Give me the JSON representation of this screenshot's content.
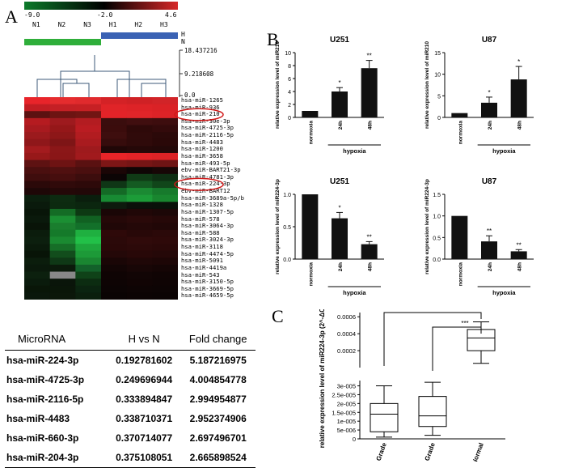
{
  "panel_a": {
    "letter": "A",
    "color_scale": {
      "min_label": "-9.0",
      "mid_label": "-2.0",
      "max_label": "4.6",
      "colors": [
        "#0c7a2a",
        "#000000",
        "#d62828"
      ]
    },
    "columns": [
      "N1",
      "N2",
      "N3",
      "H1",
      "H2",
      "H3"
    ],
    "group_legend": [
      {
        "label": "H",
        "color": "#3a62b4"
      },
      {
        "label": "N",
        "color": "#2fae3a"
      }
    ],
    "dendrogram_ticks": [
      "18.437216",
      "9.218608",
      "0.0"
    ],
    "rows": [
      "hsa-miR-1265",
      "hsa-miR-936",
      "hsa-miR-210",
      "hsa-miR-30e-3p",
      "hsa-miR-4725-3p",
      "hsa-miR-2116-5p",
      "hsa-miR-4483",
      "hsa-miR-1200",
      "hsa-miR-3658",
      "hsa-miR-493-5p",
      "ebv-miR-BART21-3p",
      "hsa-miR-4781-3p",
      "hsa-miR-224-3p",
      "ebv-miR-BART12",
      "hsa-miR-3689a-5p/b",
      "hsa-miR-1328",
      "hsa-miR-1307-5p",
      "hsa-miR-578",
      "hsa-miR-3064-3p",
      "hsa-miR-588",
      "hsa-miR-3024-3p",
      "hsa-miR-3118",
      "hsa-miR-4474-5p",
      "hsa-miR-5091",
      "hsa-miR-4419a",
      "hsa-miR-543",
      "hsa-miR-3150-5p",
      "hsa-miR-3669-5p",
      "hsa-miR-4659-5p"
    ],
    "highlighted_rows": [
      "hsa-miR-210",
      "hsa-miR-224-3p"
    ]
  },
  "table": {
    "headers": [
      "MicroRNA",
      "H vs N",
      "Fold change"
    ],
    "rows": [
      [
        "hsa-miR-224-3p",
        "0.192781602",
        "5.187216975"
      ],
      [
        "hsa-miR-4725-3p",
        "0.249696944",
        "4.004854778"
      ],
      [
        "hsa-miR-2116-5p",
        "0.333894847",
        "2.994954877"
      ],
      [
        "hsa-miR-4483",
        "0.338710371",
        "2.952374906"
      ],
      [
        "hsa-miR-660-3p",
        "0.370714077",
        "2.697496701"
      ],
      [
        "hsa-miR-204-3p",
        "0.375108051",
        "2.665898524"
      ]
    ]
  },
  "panel_b": {
    "letter": "B",
    "x_group_label": "hypoxia",
    "categories": [
      "normoxia",
      "24h",
      "48h"
    ]
  },
  "panel_c": {
    "letter": "C"
  },
  "chart_data": [
    {
      "type": "bar",
      "title": "U251",
      "ylabel": "relative expression level of miR210",
      "categories": [
        "normoxia",
        "24h",
        "48h"
      ],
      "values": [
        1.0,
        4.0,
        7.6
      ],
      "errors": [
        0,
        0.6,
        1.2
      ],
      "significance": [
        "",
        "*",
        "**"
      ],
      "ylim": [
        0,
        10
      ],
      "yticks": [
        "0",
        "2",
        "4",
        "6",
        "8",
        "10"
      ]
    },
    {
      "type": "bar",
      "title": "U87",
      "ylabel": "relative expression level of miR210",
      "categories": [
        "normoxia",
        "24h",
        "48h"
      ],
      "values": [
        1.0,
        3.4,
        8.8
      ],
      "errors": [
        0,
        1.3,
        3.0
      ],
      "significance": [
        "",
        "*",
        "*"
      ],
      "ylim": [
        0,
        15
      ],
      "yticks": [
        "0",
        "5",
        "10",
        "15"
      ]
    },
    {
      "type": "bar",
      "title": "U251",
      "ylabel": "relative expression level of miR224-3p",
      "categories": [
        "normoxia",
        "24h",
        "48h"
      ],
      "values": [
        1.0,
        0.63,
        0.23
      ],
      "errors": [
        0,
        0.09,
        0.04
      ],
      "significance": [
        "",
        "*",
        "**"
      ],
      "ylim": [
        0,
        1.0
      ],
      "yticks": [
        "0.0",
        "0.5",
        "1.0"
      ]
    },
    {
      "type": "bar",
      "title": "U87",
      "ylabel": "relative expression level of miR224-3p",
      "categories": [
        "normoxia",
        "24h",
        "48h"
      ],
      "values": [
        1.0,
        0.41,
        0.18
      ],
      "errors": [
        0,
        0.13,
        0.04
      ],
      "significance": [
        "",
        "**",
        "**"
      ],
      "ylim": [
        0,
        1.5
      ],
      "yticks": [
        "0.0",
        "0.5",
        "1.0",
        "1.5"
      ]
    },
    {
      "type": "box",
      "ylabel": "relative expression level of miR224-3p (2^-ΔCt)",
      "categories": [
        "I - II Grade",
        "III-IV Grade",
        "Normal"
      ],
      "scale": "broken",
      "yticks_lower": [
        "0",
        "5e-006",
        "1e-005",
        "1.5e-005",
        "2e-005",
        "2.5e-005",
        "3e-005"
      ],
      "yticks_upper": [
        "0.0002",
        "0.0004",
        "0.0006"
      ],
      "boxes": [
        {
          "min": 1e-06,
          "q1": 4e-06,
          "median": 1.4e-05,
          "q3": 2e-05,
          "max": 3e-05
        },
        {
          "min": 2e-06,
          "q1": 7e-06,
          "median": 1.3e-05,
          "q3": 2.4e-05,
          "max": 3.2e-05
        },
        {
          "min": 5e-05,
          "q1": 0.0002,
          "median": 0.00035,
          "q3": 0.00045,
          "max": 0.00054
        }
      ],
      "significance": [
        {
          "from": "I - II Grade",
          "to": "Normal",
          "label": "***"
        },
        {
          "from": "III-IV Grade",
          "to": "Normal",
          "label": "***"
        }
      ]
    }
  ]
}
